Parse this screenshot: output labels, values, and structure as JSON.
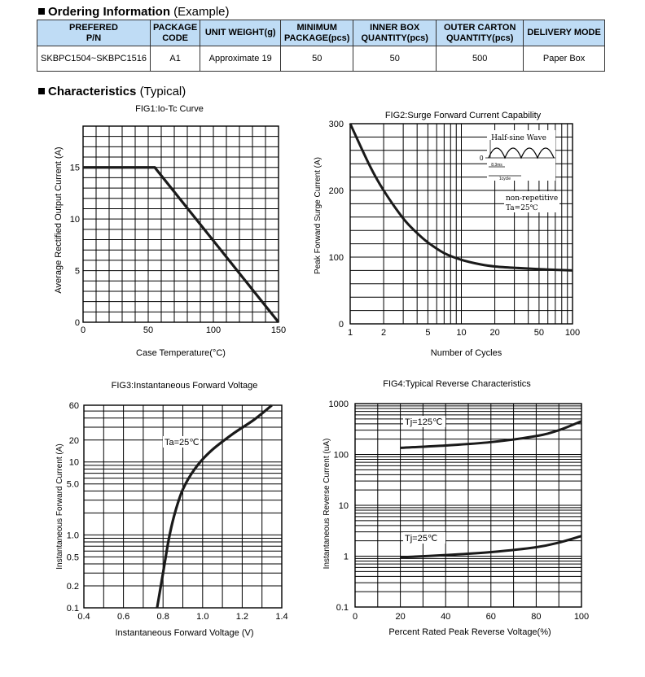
{
  "ordering": {
    "title": "Ordering Information",
    "subtitle": "(Example)",
    "headers": [
      [
        "PREFERED",
        "P/N"
      ],
      [
        "PACKAGE",
        "CODE"
      ],
      [
        "UNIT WEIGHT(g)"
      ],
      [
        "MINIMUM",
        "PACKAGE(pcs)"
      ],
      [
        "INNER BOX",
        "QUANTITY(pcs)"
      ],
      [
        "OUTER CARTON",
        "QUANTITY(pcs)"
      ],
      [
        "DELIVERY MODE"
      ]
    ],
    "row": [
      "SKBPC1504~SKBPC1516",
      "A1",
      "Approximate 19",
      "50",
      "50",
      "500",
      "Paper Box"
    ]
  },
  "characteristics": {
    "title": "Characteristics",
    "subtitle": "(Typical)"
  },
  "chart_data": [
    {
      "id": "fig1",
      "type": "line",
      "title": "FIG1:Io-Tc Curve",
      "xlabel": "Case Temperature(°C)",
      "ylabel": "Average Rectified Output Current (A)",
      "xlim": [
        0,
        150
      ],
      "ylim": [
        0,
        19
      ],
      "xticks": [
        0,
        50,
        100,
        150
      ],
      "yticks": [
        0,
        5,
        10,
        15
      ],
      "x": [
        0,
        55,
        150
      ],
      "y": [
        15,
        15,
        0
      ]
    },
    {
      "id": "fig2",
      "type": "line",
      "xscale": "log",
      "title": "FIG2:Surge Forward Current Capability",
      "xlabel": "Number of Cycles",
      "ylabel": "Peak Forward Surge Current (A)",
      "xlim": [
        1,
        100
      ],
      "ylim": [
        0,
        300
      ],
      "xticks": [
        1,
        2,
        5,
        10,
        20,
        50,
        100
      ],
      "yticks": [
        0,
        100,
        200,
        300
      ],
      "x": [
        1,
        1.5,
        2,
        3,
        4,
        5,
        7,
        10,
        15,
        20,
        30,
        50,
        70,
        100
      ],
      "y": [
        300,
        237,
        200,
        158,
        136,
        122,
        106,
        96,
        89,
        86,
        84,
        82,
        81,
        80
      ],
      "inset": {
        "title": "Half-sine Wave",
        "zero": "0",
        "label1": "8.3ms",
        "label2": "1cycle"
      },
      "annotations": [
        "non-repetitive",
        "Ta=25℃"
      ]
    },
    {
      "id": "fig3",
      "type": "line",
      "yscale": "log",
      "title": "FIG3:Instantaneous Forward Voltage",
      "xlabel": "Instantaneous Forward Voltage (V)",
      "ylabel": "Instantaneous Forward Current (A)",
      "xlim": [
        0.4,
        1.4
      ],
      "ylim": [
        0.1,
        60
      ],
      "xticks": [
        0.4,
        0.6,
        0.8,
        1.0,
        1.2,
        1.4
      ],
      "xtick_labels": [
        "0.4",
        "0.6",
        "0.8",
        "1.0",
        "1.2",
        "1.4"
      ],
      "yticks": [
        0.1,
        0.2,
        0.5,
        1.0,
        5.0,
        10,
        20,
        60
      ],
      "ytick_labels": [
        "0.1",
        "0.2",
        "0.5",
        "1.0",
        "5.0",
        "10",
        "20",
        "60"
      ],
      "x": [
        0.77,
        0.8,
        0.83,
        0.86,
        0.9,
        0.96,
        1.04,
        1.15,
        1.26,
        1.35
      ],
      "y": [
        0.1,
        0.3,
        0.9,
        2.0,
        4.2,
        8.0,
        14,
        24,
        38,
        60
      ],
      "annotations": [
        "Ta=25℃"
      ]
    },
    {
      "id": "fig4",
      "type": "line",
      "yscale": "log",
      "title": "FIG4:Typical Reverse Characteristics",
      "xlabel": "Percent Rated Peak Reverse Voltage(%)",
      "ylabel": "Instantaneous Reverse Current (uA)",
      "xlim": [
        0,
        100
      ],
      "ylim": [
        0.1,
        1000
      ],
      "xticks": [
        0,
        20,
        40,
        60,
        80,
        100
      ],
      "yticks": [
        0.1,
        1,
        10,
        100,
        1000
      ],
      "ytick_labels": [
        "0.1",
        "1",
        "10",
        "100",
        "1000"
      ],
      "series": [
        {
          "name": "Tj=125℃",
          "x": [
            20,
            40,
            60,
            80,
            90,
            100
          ],
          "y": [
            135,
            150,
            175,
            230,
            300,
            450
          ]
        },
        {
          "name": "Tj=25℃",
          "x": [
            20,
            40,
            60,
            80,
            90,
            100
          ],
          "y": [
            0.95,
            1.05,
            1.2,
            1.5,
            1.85,
            2.5
          ]
        }
      ]
    }
  ]
}
